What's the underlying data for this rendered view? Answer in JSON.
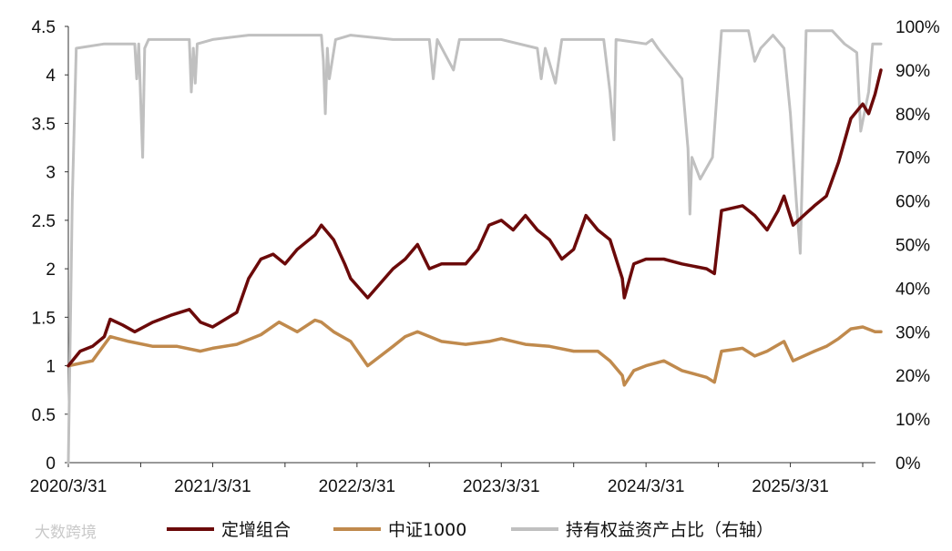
{
  "chart_data": {
    "type": "line",
    "x_dates": [
      "2020/3/31",
      "2020/9/30",
      "2021/3/31",
      "2021/9/30",
      "2022/3/31",
      "2022/9/30",
      "2023/3/31",
      "2023/9/30",
      "2024/3/31",
      "2024/9/30",
      "2025/3/31",
      "2025/9/30"
    ],
    "x_tick_labels": [
      "2020/3/31",
      "2021/3/31",
      "2022/3/31",
      "2023/3/31",
      "2024/3/31",
      "2025/3/31"
    ],
    "y_left": {
      "range": [
        0,
        4.5
      ],
      "ticks": [
        "0",
        "0.5",
        "1",
        "1.5",
        "2",
        "2.5",
        "3",
        "3.5",
        "4",
        "4.5"
      ]
    },
    "y_right": {
      "range": [
        0,
        100
      ],
      "unit": "%",
      "ticks": [
        "0%",
        "10%",
        "20%",
        "30%",
        "40%",
        "50%",
        "60%",
        "70%",
        "80%",
        "90%",
        "100%"
      ]
    },
    "grid": false,
    "legend_position": "bottom",
    "series": [
      {
        "name": "定增组合",
        "axis": "left",
        "color": "#6b0a0a",
        "points": [
          [
            "2020/3/31",
            1.0
          ],
          [
            "2020/4/30",
            1.15
          ],
          [
            "2020/5/31",
            1.2
          ],
          [
            "2020/6/30",
            1.3
          ],
          [
            "2020/7/15",
            1.48
          ],
          [
            "2020/8/15",
            1.42
          ],
          [
            "2020/9/15",
            1.35
          ],
          [
            "2020/10/31",
            1.45
          ],
          [
            "2020/12/15",
            1.52
          ],
          [
            "2021/1/31",
            1.58
          ],
          [
            "2021/2/28",
            1.45
          ],
          [
            "2021/3/31",
            1.4
          ],
          [
            "2021/5/31",
            1.55
          ],
          [
            "2021/6/30",
            1.9
          ],
          [
            "2021/7/31",
            2.1
          ],
          [
            "2021/8/31",
            2.15
          ],
          [
            "2021/9/30",
            2.05
          ],
          [
            "2021/10/31",
            2.2
          ],
          [
            "2021/11/30",
            2.3
          ],
          [
            "2021/12/15",
            2.35
          ],
          [
            "2021/12/31",
            2.45
          ],
          [
            "2022/1/31",
            2.3
          ],
          [
            "2022/2/28",
            2.05
          ],
          [
            "2022/3/15",
            1.9
          ],
          [
            "2022/4/27",
            1.7
          ],
          [
            "2022/6/30",
            2.0
          ],
          [
            "2022/7/31",
            2.1
          ],
          [
            "2022/8/31",
            2.25
          ],
          [
            "2022/9/30",
            2.0
          ],
          [
            "2022/10/31",
            2.05
          ],
          [
            "2022/12/31",
            2.05
          ],
          [
            "2023/1/31",
            2.2
          ],
          [
            "2023/2/28",
            2.45
          ],
          [
            "2023/3/31",
            2.5
          ],
          [
            "2023/4/30",
            2.4
          ],
          [
            "2023/5/31",
            2.55
          ],
          [
            "2023/6/30",
            2.4
          ],
          [
            "2023/7/31",
            2.3
          ],
          [
            "2023/8/31",
            2.1
          ],
          [
            "2023/9/30",
            2.2
          ],
          [
            "2023/10/31",
            2.55
          ],
          [
            "2023/11/30",
            2.4
          ],
          [
            "2023/12/31",
            2.3
          ],
          [
            "2024/1/31",
            1.9
          ],
          [
            "2024/2/5",
            1.7
          ],
          [
            "2024/2/29",
            2.05
          ],
          [
            "2024/3/31",
            2.1
          ],
          [
            "2024/5/15",
            2.1
          ],
          [
            "2024/6/30",
            2.05
          ],
          [
            "2024/8/31",
            2.0
          ],
          [
            "2024/9/20",
            1.95
          ],
          [
            "2024/10/8",
            2.6
          ],
          [
            "2024/11/30",
            2.65
          ],
          [
            "2024/12/31",
            2.55
          ],
          [
            "2025/1/31",
            2.4
          ],
          [
            "2025/2/28",
            2.6
          ],
          [
            "2025/3/15",
            2.75
          ],
          [
            "2025/4/7",
            2.45
          ],
          [
            "2025/5/31",
            2.65
          ],
          [
            "2025/6/30",
            2.75
          ],
          [
            "2025/7/31",
            3.1
          ],
          [
            "2025/8/31",
            3.55
          ],
          [
            "2025/9/30",
            3.7
          ],
          [
            "2025/10/15",
            3.6
          ],
          [
            "2025/10/31",
            3.8
          ],
          [
            "2025/11/15",
            4.05
          ]
        ]
      },
      {
        "name": "中证1000",
        "axis": "left",
        "color": "#c08a4d",
        "points": [
          [
            "2020/3/31",
            1.0
          ],
          [
            "2020/5/31",
            1.05
          ],
          [
            "2020/7/15",
            1.3
          ],
          [
            "2020/8/31",
            1.25
          ],
          [
            "2020/10/31",
            1.2
          ],
          [
            "2020/12/31",
            1.2
          ],
          [
            "2021/2/28",
            1.15
          ],
          [
            "2021/3/31",
            1.18
          ],
          [
            "2021/5/31",
            1.22
          ],
          [
            "2021/7/31",
            1.32
          ],
          [
            "2021/9/15",
            1.45
          ],
          [
            "2021/10/31",
            1.35
          ],
          [
            "2021/12/15",
            1.47
          ],
          [
            "2021/12/31",
            1.45
          ],
          [
            "2022/1/31",
            1.35
          ],
          [
            "2022/3/15",
            1.25
          ],
          [
            "2022/4/27",
            1.0
          ],
          [
            "2022/6/30",
            1.2
          ],
          [
            "2022/7/31",
            1.3
          ],
          [
            "2022/8/31",
            1.35
          ],
          [
            "2022/10/31",
            1.25
          ],
          [
            "2022/12/31",
            1.22
          ],
          [
            "2023/2/28",
            1.25
          ],
          [
            "2023/3/31",
            1.28
          ],
          [
            "2023/5/31",
            1.22
          ],
          [
            "2023/7/31",
            1.2
          ],
          [
            "2023/9/30",
            1.15
          ],
          [
            "2023/11/30",
            1.15
          ],
          [
            "2023/12/31",
            1.05
          ],
          [
            "2024/1/31",
            0.9
          ],
          [
            "2024/2/5",
            0.8
          ],
          [
            "2024/2/29",
            0.95
          ],
          [
            "2024/3/31",
            1.0
          ],
          [
            "2024/5/15",
            1.05
          ],
          [
            "2024/6/30",
            0.95
          ],
          [
            "2024/8/31",
            0.88
          ],
          [
            "2024/9/20",
            0.83
          ],
          [
            "2024/10/8",
            1.15
          ],
          [
            "2024/11/30",
            1.18
          ],
          [
            "2024/12/31",
            1.1
          ],
          [
            "2025/1/31",
            1.15
          ],
          [
            "2025/3/15",
            1.25
          ],
          [
            "2025/4/7",
            1.05
          ],
          [
            "2025/5/31",
            1.15
          ],
          [
            "2025/6/30",
            1.2
          ],
          [
            "2025/7/31",
            1.28
          ],
          [
            "2025/8/31",
            1.38
          ],
          [
            "2025/9/30",
            1.4
          ],
          [
            "2025/10/31",
            1.35
          ],
          [
            "2025/11/15",
            1.35
          ]
        ]
      },
      {
        "name": "持有权益资产占比（右轴）",
        "axis": "right",
        "color": "#c0c0c0",
        "points": [
          [
            "2020/3/31",
            0
          ],
          [
            "2020/4/10",
            60
          ],
          [
            "2020/4/20",
            95
          ],
          [
            "2020/6/30",
            96
          ],
          [
            "2020/9/15",
            96
          ],
          [
            "2020/9/20",
            88
          ],
          [
            "2020/9/25",
            96
          ],
          [
            "2020/10/5",
            70
          ],
          [
            "2020/10/10",
            95
          ],
          [
            "2020/10/20",
            97
          ],
          [
            "2021/1/31",
            97
          ],
          [
            "2021/2/5",
            85
          ],
          [
            "2021/2/10",
            95
          ],
          [
            "2021/2/15",
            87
          ],
          [
            "2021/2/20",
            96
          ],
          [
            "2021/3/31",
            97
          ],
          [
            "2021/6/30",
            98
          ],
          [
            "2021/9/30",
            98
          ],
          [
            "2021/12/31",
            98
          ],
          [
            "2022/1/5",
            92
          ],
          [
            "2022/1/10",
            80
          ],
          [
            "2022/1/15",
            95
          ],
          [
            "2022/1/20",
            88
          ],
          [
            "2022/2/5",
            97
          ],
          [
            "2022/3/15",
            98
          ],
          [
            "2022/6/30",
            97
          ],
          [
            "2022/9/30",
            97
          ],
          [
            "2022/10/10",
            88
          ],
          [
            "2022/10/20",
            97
          ],
          [
            "2022/11/30",
            90
          ],
          [
            "2022/12/15",
            97
          ],
          [
            "2023/3/31",
            97
          ],
          [
            "2023/6/30",
            95
          ],
          [
            "2023/7/10",
            88
          ],
          [
            "2023/7/20",
            95
          ],
          [
            "2023/8/15",
            87
          ],
          [
            "2023/8/31",
            97
          ],
          [
            "2023/12/15",
            97
          ],
          [
            "2023/12/31",
            85
          ],
          [
            "2024/1/10",
            74
          ],
          [
            "2024/1/15",
            97
          ],
          [
            "2024/3/31",
            96
          ],
          [
            "2024/4/15",
            97
          ],
          [
            "2024/4/30",
            95
          ],
          [
            "2024/6/30",
            88
          ],
          [
            "2024/7/15",
            72
          ],
          [
            "2024/7/20",
            57
          ],
          [
            "2024/7/25",
            70
          ],
          [
            "2024/8/15",
            65
          ],
          [
            "2024/9/15",
            70
          ],
          [
            "2024/10/8",
            99
          ],
          [
            "2024/12/15",
            99
          ],
          [
            "2024/12/31",
            92
          ],
          [
            "2025/1/15",
            95
          ],
          [
            "2025/2/15",
            98
          ],
          [
            "2025/3/15",
            95
          ],
          [
            "2025/3/31",
            80
          ],
          [
            "2025/4/15",
            60
          ],
          [
            "2025/4/25",
            48
          ],
          [
            "2025/5/10",
            99
          ],
          [
            "2025/7/15",
            99
          ],
          [
            "2025/8/15",
            96
          ],
          [
            "2025/9/15",
            94
          ],
          [
            "2025/9/25",
            76
          ],
          [
            "2025/10/15",
            85
          ],
          [
            "2025/10/25",
            96
          ],
          [
            "2025/11/15",
            96
          ]
        ]
      }
    ]
  },
  "legend": {
    "items": [
      {
        "label": "定增组合",
        "color": "#6b0a0a"
      },
      {
        "label": "中证1000",
        "color": "#c08a4d"
      },
      {
        "label": "持有权益资产占比（右轴）",
        "color": "#c0c0c0"
      }
    ]
  },
  "watermark": {
    "text": "大数跨境"
  }
}
